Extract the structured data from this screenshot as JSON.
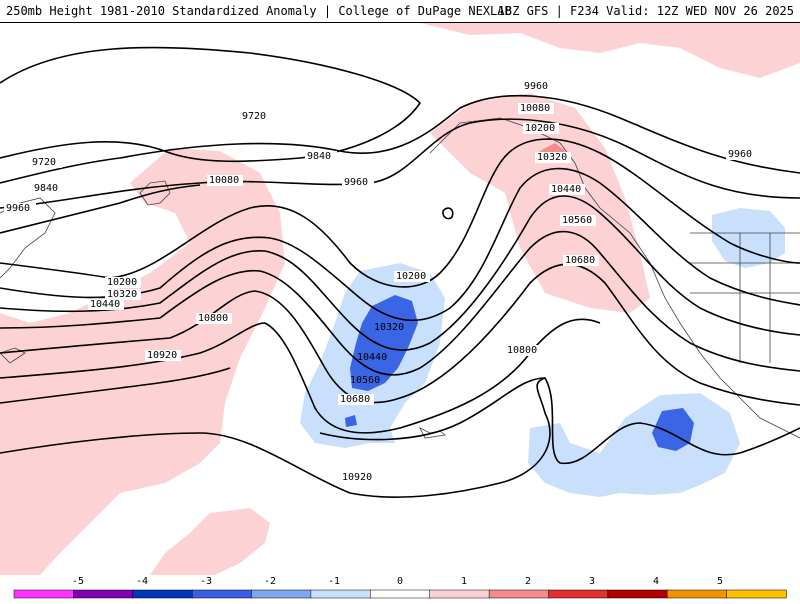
{
  "header": {
    "left": "250mb Height 1981-2010 Standardized Anomaly | College of DuPage NEXLAB",
    "right": "18Z GFS | F234 Valid: 12Z WED NOV 26 2025"
  },
  "map": {
    "contour_labels": [
      "9960",
      "10080",
      "10200",
      "10320",
      "10440",
      "10560",
      "10680",
      "9720",
      "9840",
      "9960",
      "9720",
      "9840",
      "9960",
      "10080",
      "10200",
      "10320",
      "10440",
      "10800",
      "10920",
      "10200",
      "10320",
      "10440",
      "10560",
      "10680",
      "10800",
      "10920",
      "9960"
    ]
  },
  "colorbar": {
    "ticks": [
      "-5",
      "-4",
      "-3",
      "-2",
      "-1",
      "0",
      "1",
      "2",
      "3",
      "4",
      "5"
    ],
    "colors": [
      "#ff33ff",
      "#8000b0",
      "#0036b8",
      "#3a5fe0",
      "#7fa6f0",
      "#c8e0fb",
      "#ffffff",
      "#fdd2d4",
      "#f48c8c",
      "#e03030",
      "#b00000",
      "#f29400",
      "#ffc000"
    ]
  }
}
